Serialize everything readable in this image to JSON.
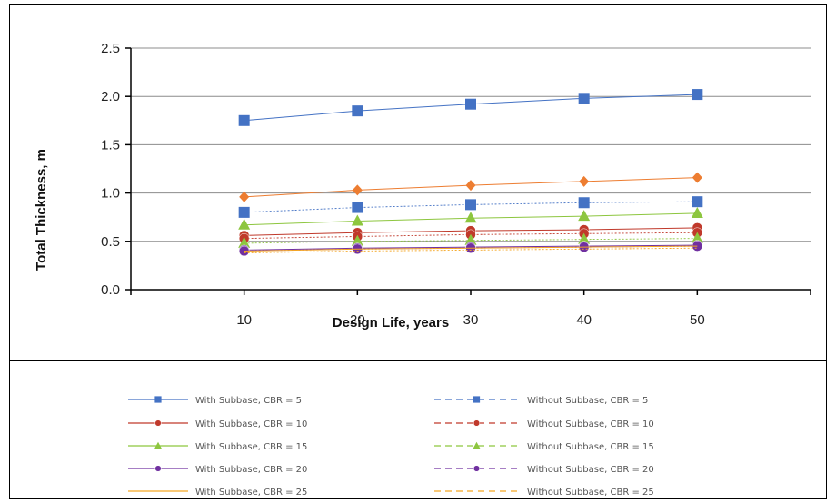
{
  "chart_data": {
    "type": "line",
    "title": "",
    "xlabel": "Design Life, years",
    "ylabel": "Total Thickness, m",
    "x": [
      10,
      20,
      30,
      40,
      50
    ],
    "xlim": [
      0,
      60
    ],
    "ylim": [
      0,
      2.5
    ],
    "yticks": [
      "0.0",
      "0.5",
      "1.0",
      "1.5",
      "2.0",
      "2.5"
    ],
    "xticks": [
      "10",
      "20",
      "30",
      "40",
      "50"
    ],
    "grid": "horizontal",
    "legend_position": "bottom",
    "series": [
      {
        "name": "With Subbase, CBR = 5",
        "color": "#4472C4",
        "marker": "square",
        "dash": false,
        "values": [
          1.75,
          1.85,
          1.92,
          1.98,
          2.02
        ]
      },
      {
        "name": "Without Subbase, CBR = 5",
        "color": "#4472C4",
        "marker": "square",
        "dash": true,
        "values": [
          0.8,
          0.85,
          0.88,
          0.9,
          0.91
        ]
      },
      {
        "name": "With Subbase, CBR = 10",
        "color": "#C0392B",
        "marker": "circle",
        "dash": false,
        "values": [
          0.56,
          0.59,
          0.61,
          0.62,
          0.64
        ]
      },
      {
        "name": "Without Subbase, CBR = 10",
        "color": "#C0392B",
        "marker": "circle",
        "dash": true,
        "values": [
          0.53,
          0.55,
          0.57,
          0.58,
          0.59
        ]
      },
      {
        "name": "With Subbase, CBR = 15",
        "color": "#8DC63F",
        "marker": "triangle",
        "dash": false,
        "values": [
          0.67,
          0.71,
          0.74,
          0.76,
          0.79
        ]
      },
      {
        "name": "Without Subbase, CBR = 15",
        "color": "#8DC63F",
        "marker": "triangle",
        "dash": true,
        "values": [
          0.48,
          0.5,
          0.51,
          0.52,
          0.53
        ]
      },
      {
        "name": "With Subbase, CBR = 20",
        "color": "#7030A0",
        "marker": "circle",
        "dash": false,
        "values": [
          0.41,
          0.43,
          0.44,
          0.45,
          0.46
        ]
      },
      {
        "name": "Without Subbase, CBR = 20",
        "color": "#7030A0",
        "marker": "circle",
        "dash": true,
        "values": [
          0.4,
          0.42,
          0.43,
          0.44,
          0.45
        ]
      },
      {
        "name": "With Subbase, CBR = 25",
        "color": "#F5A623",
        "marker": "none",
        "dash": false,
        "values": [
          0.4,
          0.42,
          0.43,
          0.44,
          0.45
        ]
      },
      {
        "name": "Without Subbase, CBR = 25",
        "color": "#F5A623",
        "marker": "none",
        "dash": true,
        "values": [
          0.38,
          0.4,
          0.41,
          0.42,
          0.43
        ]
      },
      {
        "name": "",
        "color": "#ED7D31",
        "marker": "diamond",
        "dash": false,
        "values": [
          0.96,
          1.03,
          1.08,
          1.12,
          1.16
        ]
      }
    ]
  }
}
